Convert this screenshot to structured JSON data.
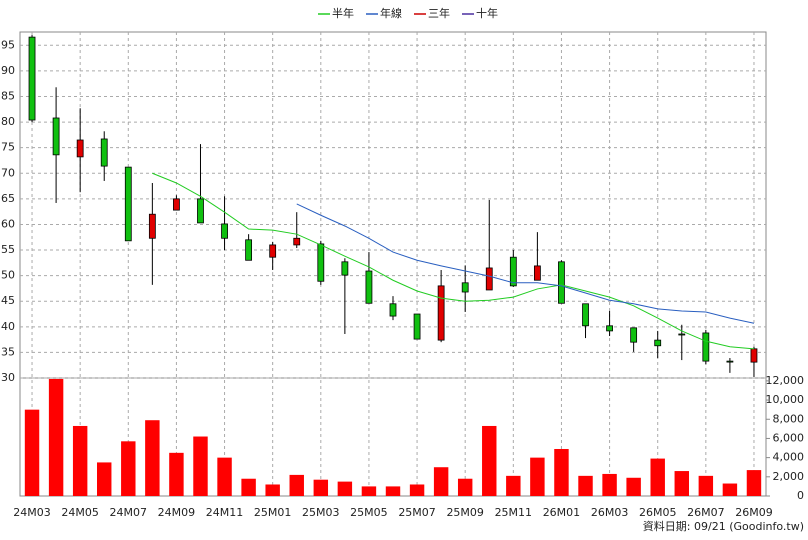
{
  "chart_data": {
    "type": "candlestick",
    "categories": [
      "24M03",
      null,
      "24M05",
      null,
      "24M07",
      null,
      "24M09",
      null,
      "24M11",
      null,
      "25M01",
      null,
      "25M03",
      null,
      "25M05",
      null,
      "25M07",
      null,
      "25M09",
      null,
      "25M11",
      null,
      "26M01",
      null,
      "26M03",
      null,
      "26M05",
      null,
      "26M07",
      null,
      "26M09"
    ],
    "open": [
      96.6,
      80.8,
      73.2,
      76.7,
      71.2,
      57.3,
      62.8,
      65,
      60.1,
      57,
      53.6,
      56,
      56.2,
      52.7,
      50.9,
      44.5,
      42.5,
      37.4,
      48.6,
      47.2,
      53.6,
      49.1,
      52.7,
      44.5,
      40.2,
      39.8,
      37.4,
      38.6,
      38.8,
      33.3,
      33.1
    ],
    "high": [
      97,
      86.8,
      82.7,
      78.2,
      71.2,
      68.1,
      65.7,
      75.7,
      65.5,
      58.1,
      56.6,
      62.4,
      56.8,
      53.4,
      54.6,
      46,
      42.5,
      51.1,
      52,
      64.8,
      55,
      58.5,
      53,
      44.5,
      43.1,
      39.8,
      39.2,
      40.4,
      39.4,
      33.9,
      36.1
    ],
    "low": [
      80,
      64.2,
      66.3,
      68.5,
      56.8,
      48.2,
      62.8,
      60.3,
      55,
      53,
      51.1,
      55.4,
      48.2,
      38.6,
      44.6,
      41.3,
      37.6,
      37,
      42.9,
      47.2,
      47.8,
      49.1,
      44.6,
      37.8,
      38.2,
      35.1,
      33.9,
      33.5,
      32.7,
      31,
      30.2
    ],
    "close": [
      80.4,
      73.6,
      76.5,
      71.4,
      56.8,
      62,
      65,
      60.3,
      57.3,
      53,
      56,
      57.3,
      48.9,
      50.1,
      44.6,
      42.1,
      37.6,
      48,
      46.8,
      51.5,
      48,
      51.9,
      44.6,
      40.2,
      39.2,
      37,
      36.3,
      38.4,
      33.3,
      33.2,
      35.7
    ],
    "up_color": "#e00000",
    "down_color": "#10c010",
    "ylim": [
      30,
      97.6
    ],
    "yticks": [
      30,
      35,
      40,
      45,
      50,
      55,
      60,
      65,
      70,
      75,
      80,
      85,
      90,
      95
    ],
    "grid": true,
    "series": [
      {
        "name": "半年",
        "color": "#22cc22",
        "values": [
          null,
          null,
          null,
          null,
          null,
          70,
          68.1,
          65.5,
          62.4,
          59.1,
          58.9,
          58.1,
          56,
          53.8,
          51.7,
          49.1,
          47,
          45.6,
          45,
          45.2,
          45.8,
          47.4,
          48.2,
          47,
          45.8,
          44.1,
          41.7,
          39.2,
          37.2,
          36.1,
          35.7
        ]
      },
      {
        "name": "年線",
        "color": "#2a5fc0",
        "values": [
          null,
          null,
          null,
          null,
          null,
          null,
          null,
          null,
          null,
          null,
          null,
          64,
          61.8,
          59.7,
          57.3,
          54.6,
          53,
          51.9,
          50.9,
          49.9,
          48.6,
          48.6,
          48,
          46.6,
          45.2,
          44.5,
          43.5,
          43.1,
          42.9,
          41.7,
          40.7
        ]
      },
      {
        "name": "三年",
        "color": "#cc0000",
        "values": [
          null,
          null,
          null,
          null,
          null,
          null,
          null,
          null,
          null,
          null,
          null,
          null,
          null,
          null,
          null,
          null,
          null,
          null,
          null,
          null,
          null,
          null,
          null,
          null,
          null,
          null,
          null,
          null,
          null,
          null,
          null
        ]
      },
      {
        "name": "十年",
        "color": "#4a2fa0",
        "values": [
          null,
          null,
          null,
          null,
          null,
          null,
          null,
          null,
          null,
          null,
          null,
          null,
          null,
          null,
          null,
          null,
          null,
          null,
          null,
          null,
          null,
          null,
          null,
          null,
          null,
          null,
          null,
          null,
          null,
          null,
          null
        ]
      }
    ],
    "volume": [
      9000,
      12200,
      7300,
      3500,
      5700,
      7900,
      4500,
      6200,
      4000,
      1800,
      1200,
      2200,
      1700,
      1500,
      1000,
      1000,
      1200,
      3000,
      1800,
      7300,
      2100,
      4000,
      4900,
      2100,
      2300,
      1900,
      3900,
      2600,
      2100,
      1300,
      2700
    ],
    "volume_color": "#ff0000",
    "y2lim": [
      0,
      12300
    ],
    "y2ticks": [
      0,
      {
        "value": 2000,
        "label": "2,000"
      },
      {
        "value": 4000,
        "label": "4,000"
      },
      {
        "value": 6000,
        "label": "6,000"
      },
      {
        "value": 8000,
        "label": "8,000"
      },
      {
        "value": 10000,
        "label": "10,000"
      },
      {
        "value": 12000,
        "label": "12,000"
      }
    ],
    "source": "資料日期: 09/21 (Goodinfo.tw)"
  }
}
